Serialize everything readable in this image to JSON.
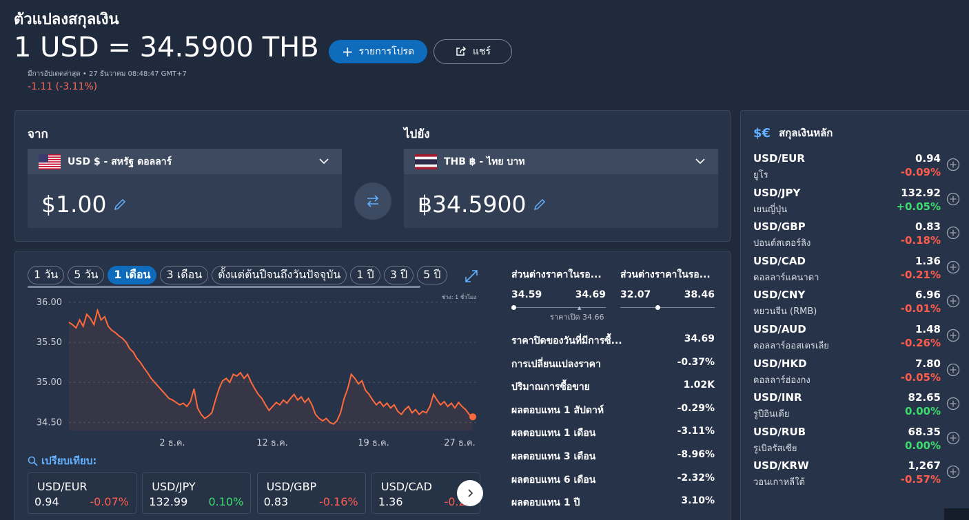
{
  "page": {
    "title": "ตัวแปลงสกุลเงิน",
    "headline": "1 USD = 34.5900 THB",
    "favorite_label": "รายการโปรด",
    "share_label": "แชร์",
    "updated": "มีการอัปเดตล่าสุด • 27 ธันวาคม 08:48:47 GMT+7",
    "change": "-1.11 (-3.11%)"
  },
  "converter": {
    "from_label": "จาก",
    "to_label": "ไปยัง",
    "from_currency": "USD $ - สหรัฐ ดอลลาร์",
    "to_currency": "THB ฿ - ไทย บาท",
    "from_amount": "$1.00",
    "to_amount": "฿34.5900"
  },
  "tabs": [
    "1 วัน",
    "5 วัน",
    "1 เดือน",
    "3 เดือน",
    "ตั้งแต่ต้นปีจนถึงวันปัจจุบัน",
    "1 ปี",
    "3 ปี",
    "5 ปี"
  ],
  "active_tab": 2,
  "interval_label": "ช่วง: 1 ชั่วโมง",
  "chart_data": {
    "type": "line",
    "x_ticks": [
      "2 ธ.ค.",
      "12 ธ.ค.",
      "19 ธ.ค.",
      "27 ธ.ค."
    ],
    "y_ticks": [
      "36.00",
      "35.50",
      "35.00",
      "34.50"
    ],
    "ylim": [
      34.4,
      36.05
    ],
    "color": "#ff6a3d",
    "values": [
      35.75,
      35.72,
      35.68,
      35.78,
      35.7,
      35.85,
      35.8,
      35.72,
      35.9,
      35.78,
      35.82,
      35.7,
      35.65,
      35.62,
      35.58,
      35.55,
      35.5,
      35.42,
      35.38,
      35.3,
      35.25,
      35.18,
      35.12,
      35.05,
      35.0,
      34.95,
      34.9,
      34.85,
      34.8,
      34.78,
      34.75,
      34.72,
      34.74,
      34.7,
      34.76,
      34.92,
      34.68,
      34.6,
      34.55,
      34.58,
      34.62,
      34.78,
      34.92,
      35.02,
      35.05,
      35.0,
      35.1,
      35.08,
      35.12,
      35.05,
      35.1,
      35.0,
      34.92,
      34.85,
      34.8,
      34.72,
      34.65,
      34.7,
      34.75,
      34.72,
      34.78,
      34.74,
      34.8,
      34.85,
      34.78,
      34.82,
      34.75,
      34.8,
      34.72,
      34.6,
      34.55,
      34.52,
      34.55,
      34.5,
      34.48,
      34.52,
      34.62,
      34.8,
      34.92,
      35.1,
      35.05,
      34.98,
      35.02,
      34.9,
      34.85,
      34.78,
      34.72,
      34.76,
      34.7,
      34.74,
      34.68,
      34.72,
      34.64,
      34.6,
      34.66,
      34.7,
      34.62,
      34.66,
      34.6,
      34.64,
      34.62,
      34.7,
      34.85,
      34.78,
      34.72,
      34.76,
      34.7,
      34.74,
      34.68,
      34.75,
      34.7,
      34.66,
      34.6,
      34.57
    ]
  },
  "ranges": [
    {
      "title": "ส่วนต่างราคาในรอ...",
      "low": "34.59",
      "high": "34.69",
      "dot": 0.0
    },
    {
      "title": "ส่วนต่างราคาในรอ...",
      "low": "32.07",
      "high": "38.46",
      "dot": 0.39
    }
  ],
  "open_label": "ราคาเปิด 34.66",
  "stats": [
    {
      "label": "ราคาปิดของวันที่มีการซื้...",
      "value": "34.69"
    },
    {
      "label": "การเปลี่ยนแปลงราคา",
      "value": "-0.37%"
    },
    {
      "label": "ปริมาณการซื้อขาย",
      "value": "1.02K"
    },
    {
      "label": "ผลตอบแทน 1 สัปดาห์",
      "value": "-0.29%"
    },
    {
      "label": "ผลตอบแทน 1 เดือน",
      "value": "-3.11%"
    },
    {
      "label": "ผลตอบแทน 3 เดือน",
      "value": "-8.96%"
    },
    {
      "label": "ผลตอบแทน 6 เดือน",
      "value": "-2.32%"
    },
    {
      "label": "ผลตอบแทน 1 ปี",
      "value": "3.10%"
    }
  ],
  "compare": {
    "label": "เปรียบเทียบ:",
    "cards": [
      {
        "pair": "USD/EUR",
        "value": "0.94",
        "change": "-0.07%",
        "dir": "neg"
      },
      {
        "pair": "USD/JPY",
        "value": "132.99",
        "change": "0.10%",
        "dir": "pos"
      },
      {
        "pair": "USD/GBP",
        "value": "0.83",
        "change": "-0.16%",
        "dir": "neg"
      },
      {
        "pair": "USD/CAD",
        "value": "1.36",
        "change": "-0.20",
        "dir": "neg"
      }
    ]
  },
  "major": {
    "title": "สกุลเงินหลัก",
    "symbol": "$€",
    "rows": [
      {
        "pair": "USD/EUR",
        "name": "ยูโร",
        "value": "0.94",
        "change": "-0.09%",
        "dir": "neg"
      },
      {
        "pair": "USD/JPY",
        "name": "เยนญี่ปุ่น",
        "value": "132.92",
        "change": "+0.05%",
        "dir": "pos"
      },
      {
        "pair": "USD/GBP",
        "name": "ปอนด์สเตอร์ลิง",
        "value": "0.83",
        "change": "-0.18%",
        "dir": "neg"
      },
      {
        "pair": "USD/CAD",
        "name": "ดอลลาร์แคนาดา",
        "value": "1.36",
        "change": "-0.21%",
        "dir": "neg"
      },
      {
        "pair": "USD/CNY",
        "name": "หยวนจีน (RMB)",
        "value": "6.96",
        "change": "-0.01%",
        "dir": "neg"
      },
      {
        "pair": "USD/AUD",
        "name": "ดอลลาร์ออสเตรเลีย",
        "value": "1.48",
        "change": "-0.26%",
        "dir": "neg"
      },
      {
        "pair": "USD/HKD",
        "name": "ดอลลาร์ฮ่องกง",
        "value": "7.80",
        "change": "-0.05%",
        "dir": "neg"
      },
      {
        "pair": "USD/INR",
        "name": "รูปีอินเดีย",
        "value": "82.65",
        "change": "0.00%",
        "dir": "pos"
      },
      {
        "pair": "USD/RUB",
        "name": "รูเบิลรัสเซีย",
        "value": "68.35",
        "change": "0.00%",
        "dir": "pos"
      },
      {
        "pair": "USD/KRW",
        "name": "วอนเกาหลีใต้",
        "value": "1,267",
        "change": "-0.57%",
        "dir": "neg"
      }
    ]
  }
}
